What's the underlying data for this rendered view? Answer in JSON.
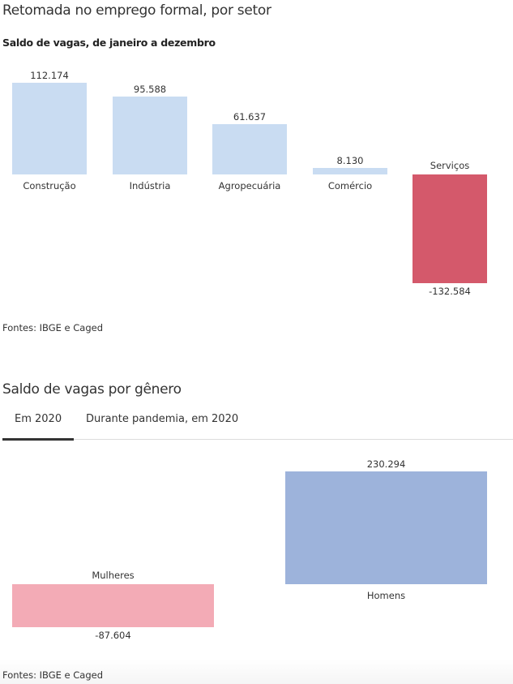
{
  "chart_data": [
    {
      "type": "bar",
      "title": "Retomada no emprego formal, por setor",
      "subtitle": "Saldo de vagas, de janeiro a dezembro",
      "categories": [
        "Construção",
        "Indústria",
        "Agropecuária",
        "Comércio",
        "Serviços"
      ],
      "values": [
        112174,
        95588,
        61637,
        8130,
        -132584
      ],
      "value_labels": [
        "112.174",
        "95.588",
        "61.637",
        "8.130",
        "-132.584"
      ],
      "colors": {
        "positive": "#c9dcf2",
        "negative": "#d4596b"
      },
      "source": "Fontes: IBGE e Caged"
    },
    {
      "type": "bar",
      "title": "Saldo de vagas por gênero",
      "tabs": [
        "Em 2020",
        "Durante pandemia, em 2020"
      ],
      "active_tab": 0,
      "categories": [
        "Mulheres",
        "Homens"
      ],
      "values": [
        -87604,
        230294
      ],
      "value_labels": [
        "-87.604",
        "230.294"
      ],
      "colors": {
        "positive": "#9db3db",
        "negative": "#f3abb6"
      },
      "source": "Fontes: IBGE e Caged"
    }
  ]
}
